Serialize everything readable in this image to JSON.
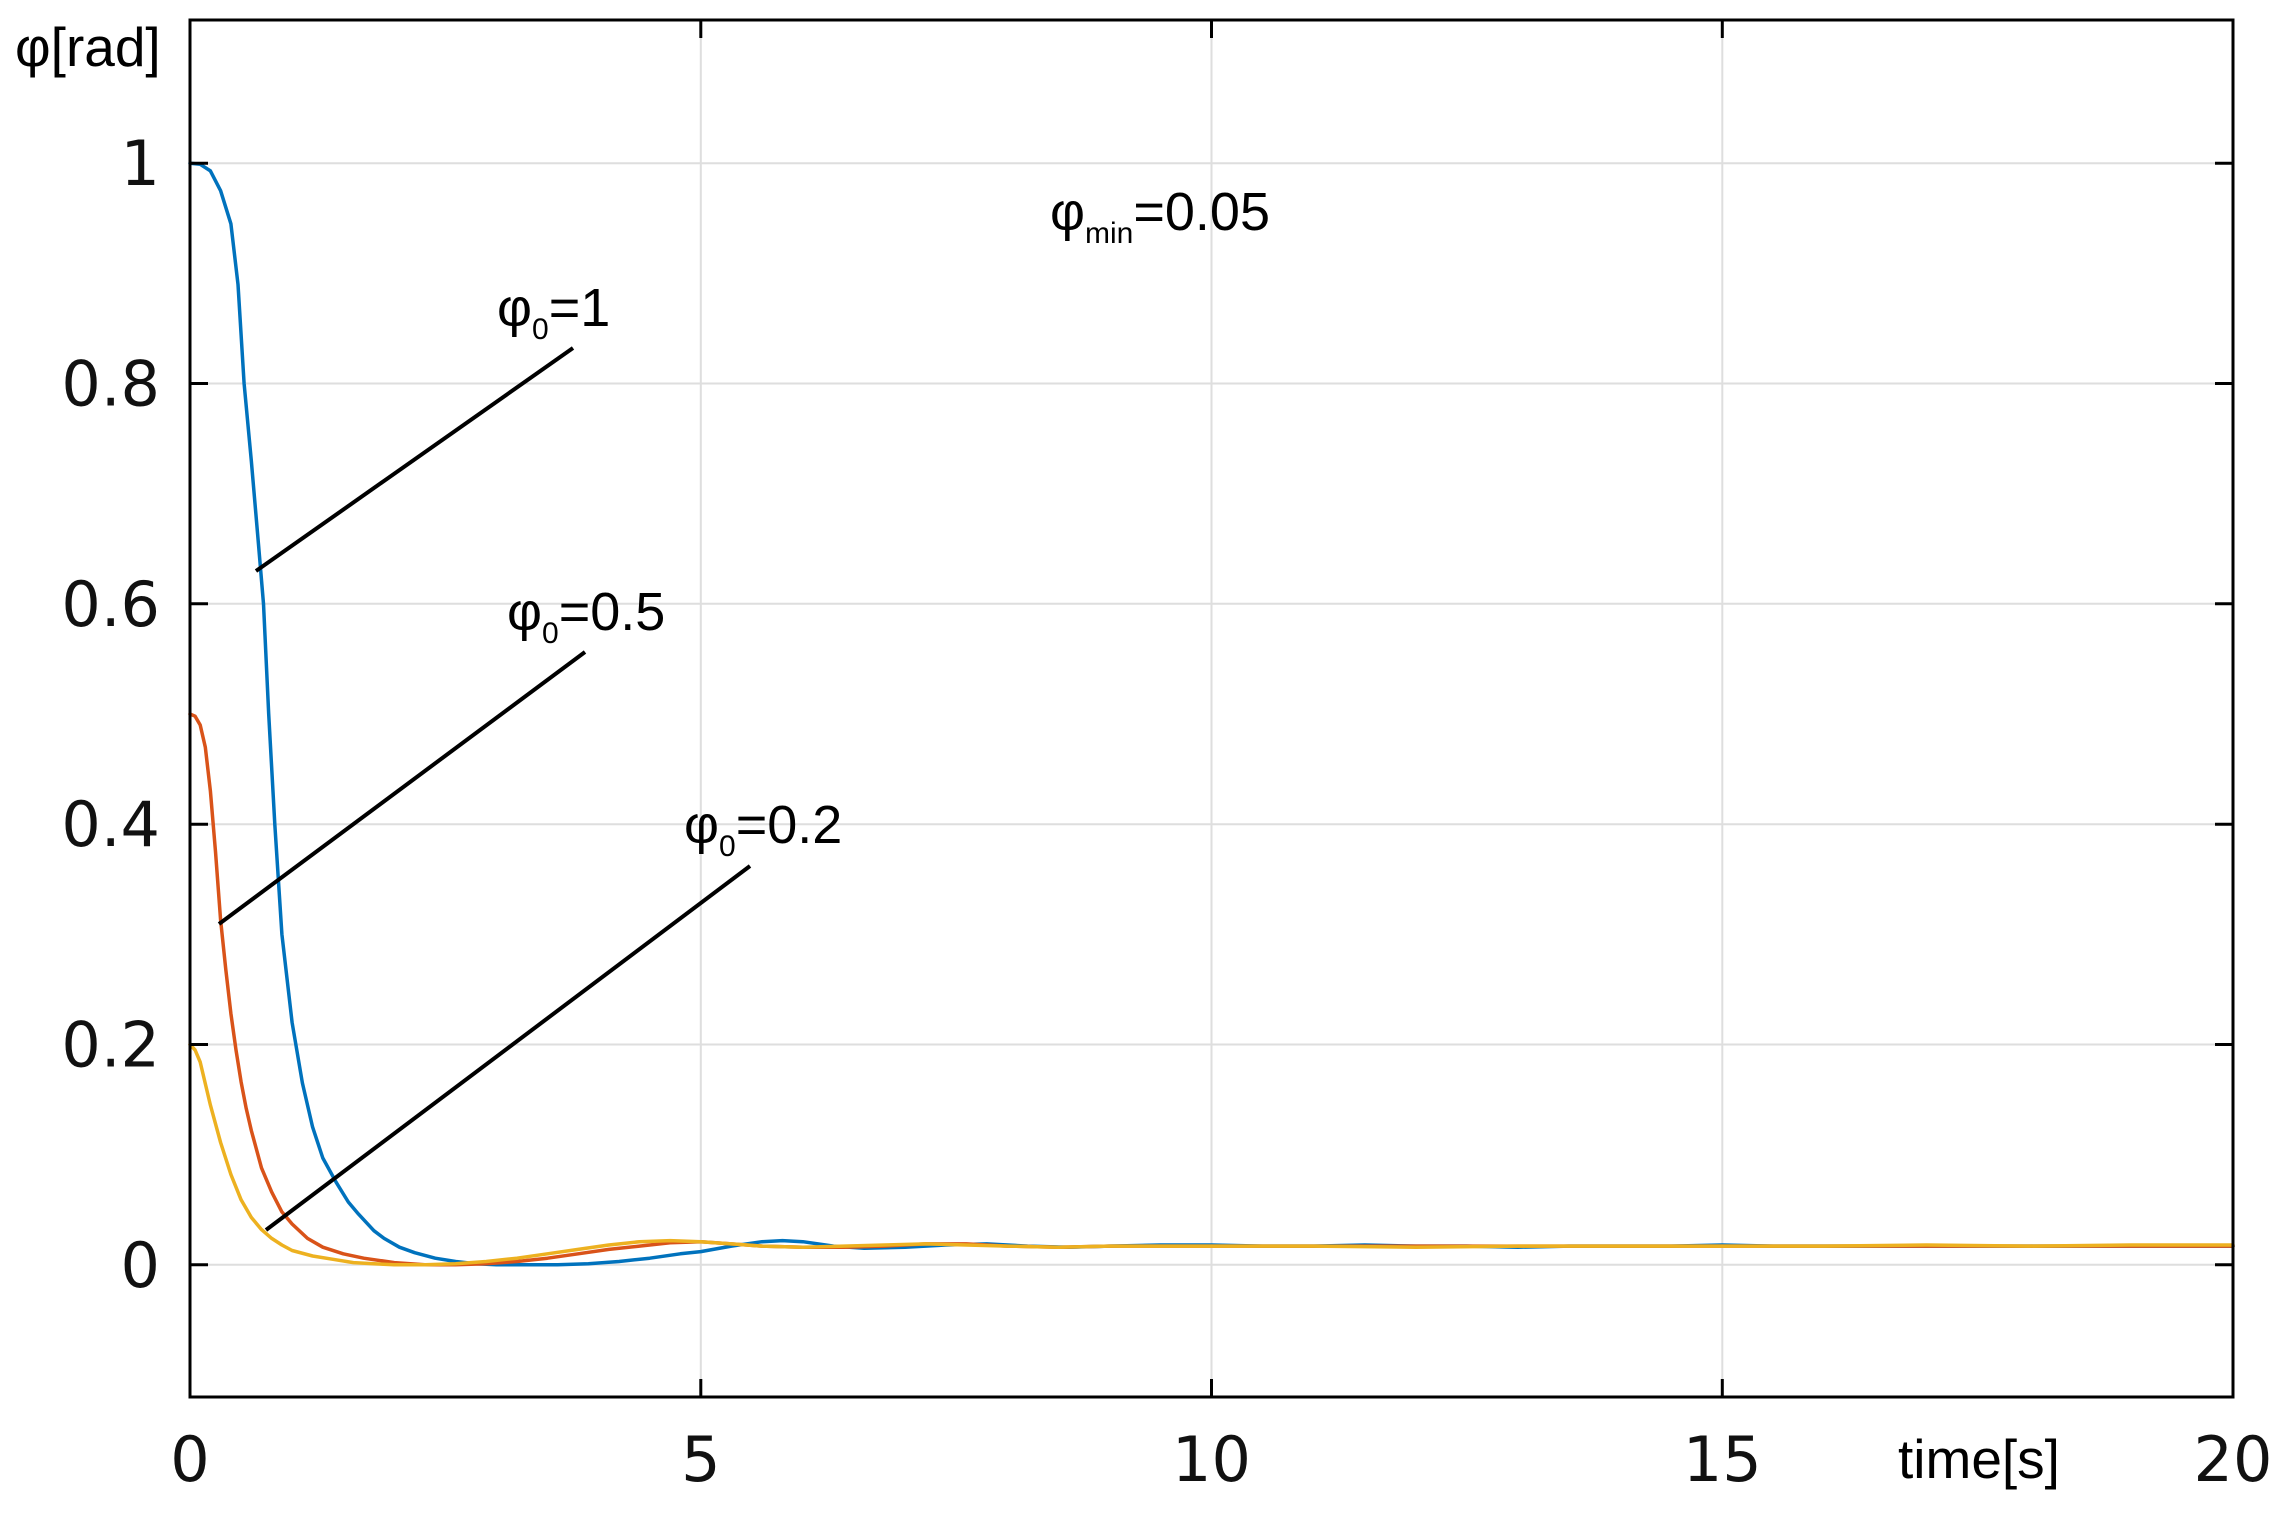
{
  "chart_data": {
    "type": "line",
    "xlabel": "time[s]",
    "ylabel": "φ[rad]",
    "xlim": [
      0,
      20
    ],
    "ylim": [
      -0.12,
      1.13
    ],
    "xticks": [
      0,
      5,
      10,
      15,
      20
    ],
    "xtick_labels": [
      "0",
      "5",
      "10",
      "15",
      "20"
    ],
    "yticks": [
      0,
      0.2,
      0.4,
      0.6,
      0.8,
      1
    ],
    "ytick_labels": [
      "0",
      "0.2",
      "0.4",
      "0.6",
      "0.8",
      "1"
    ],
    "grid": true,
    "series": [
      {
        "color": "#0072BD",
        "x": [
          0,
          0.1,
          0.2,
          0.3,
          0.4,
          0.47,
          0.53,
          0.6,
          0.67,
          0.72,
          0.77,
          0.83,
          0.9,
          1.0,
          1.1,
          1.2,
          1.3,
          1.43,
          1.55,
          1.65,
          1.8,
          1.9,
          2.05,
          2.2,
          2.4,
          2.6,
          2.8,
          3.0,
          3.3,
          3.6,
          3.9,
          4.2,
          4.5,
          4.8,
          5.0,
          5.3,
          5.6,
          5.8,
          6.0,
          6.3,
          6.6,
          7.0,
          7.4,
          7.8,
          8.2,
          8.6,
          9.0,
          9.5,
          10,
          10.5,
          11,
          11.5,
          12,
          12.5,
          13,
          13.5,
          14,
          14.5,
          15,
          15.5,
          16,
          16.5,
          17,
          17.5,
          18,
          18.5,
          19,
          19.5,
          20
        ],
        "y": [
          1.0,
          0.999,
          0.993,
          0.975,
          0.945,
          0.89,
          0.8,
          0.73,
          0.655,
          0.6,
          0.5,
          0.4,
          0.3,
          0.22,
          0.165,
          0.125,
          0.097,
          0.075,
          0.057,
          0.046,
          0.031,
          0.024,
          0.016,
          0.011,
          0.006,
          0.003,
          0.001,
          0.0,
          0.0,
          0.0,
          0.001,
          0.003,
          0.006,
          0.01,
          0.012,
          0.017,
          0.021,
          0.022,
          0.021,
          0.017,
          0.015,
          0.016,
          0.018,
          0.019,
          0.017,
          0.016,
          0.017,
          0.018,
          0.018,
          0.017,
          0.017,
          0.018,
          0.017,
          0.017,
          0.016,
          0.017,
          0.017,
          0.017,
          0.018,
          0.017,
          0.017,
          0.017,
          0.017,
          0.017,
          0.017,
          0.017,
          0.017,
          0.017,
          0.017
        ]
      },
      {
        "color": "#D95319",
        "x": [
          0,
          0.05,
          0.1,
          0.15,
          0.2,
          0.25,
          0.3,
          0.35,
          0.4,
          0.45,
          0.5,
          0.55,
          0.6,
          0.7,
          0.8,
          0.9,
          1.0,
          1.15,
          1.3,
          1.5,
          1.7,
          2.0,
          2.3,
          2.6,
          2.9,
          3.2,
          3.5,
          3.8,
          4.1,
          4.4,
          4.7,
          5.0,
          5.3,
          5.6,
          6.0,
          6.4,
          6.8,
          7.2,
          7.6,
          8.0,
          8.5,
          9,
          9.5,
          10,
          11,
          12,
          13,
          14,
          15,
          16,
          17,
          18,
          19,
          20
        ],
        "y": [
          0.5,
          0.498,
          0.49,
          0.47,
          0.43,
          0.375,
          0.313,
          0.268,
          0.228,
          0.195,
          0.166,
          0.142,
          0.122,
          0.088,
          0.066,
          0.048,
          0.037,
          0.024,
          0.016,
          0.01,
          0.006,
          0.002,
          0.0,
          0.0,
          0.001,
          0.003,
          0.006,
          0.01,
          0.014,
          0.017,
          0.02,
          0.021,
          0.019,
          0.017,
          0.016,
          0.016,
          0.017,
          0.019,
          0.019,
          0.017,
          0.016,
          0.017,
          0.017,
          0.017,
          0.017,
          0.017,
          0.017,
          0.017,
          0.017,
          0.017,
          0.017,
          0.017,
          0.017,
          0.017
        ]
      },
      {
        "color": "#EDB120",
        "x": [
          0,
          0.05,
          0.1,
          0.2,
          0.3,
          0.4,
          0.5,
          0.6,
          0.7,
          0.8,
          0.9,
          1.0,
          1.2,
          1.4,
          1.6,
          1.8,
          2.0,
          2.3,
          2.6,
          2.9,
          3.2,
          3.5,
          3.8,
          4.1,
          4.4,
          4.7,
          5.0,
          5.3,
          5.6,
          6.0,
          6.4,
          6.8,
          7.2,
          7.6,
          8.0,
          8.5,
          9,
          9.5,
          10,
          11,
          12,
          13,
          14,
          15,
          16,
          17,
          18,
          19,
          20
        ],
        "y": [
          0.2,
          0.195,
          0.184,
          0.145,
          0.111,
          0.082,
          0.059,
          0.043,
          0.032,
          0.024,
          0.018,
          0.013,
          0.008,
          0.005,
          0.002,
          0.001,
          0.0,
          0.0,
          0.001,
          0.003,
          0.006,
          0.01,
          0.014,
          0.018,
          0.021,
          0.022,
          0.021,
          0.019,
          0.017,
          0.016,
          0.017,
          0.018,
          0.019,
          0.018,
          0.017,
          0.016,
          0.017,
          0.017,
          0.017,
          0.017,
          0.016,
          0.017,
          0.017,
          0.017,
          0.017,
          0.018,
          0.017,
          0.018,
          0.018
        ]
      }
    ],
    "annotations": [
      {
        "symbol": "φ",
        "subscript": "min",
        "text": "=0.05"
      },
      {
        "symbol": "φ",
        "subscript": "0",
        "text": "=1"
      },
      {
        "symbol": "φ",
        "subscript": "0",
        "text": "=0.5"
      },
      {
        "symbol": "φ",
        "subscript": "0",
        "text": "=0.2"
      }
    ]
  }
}
